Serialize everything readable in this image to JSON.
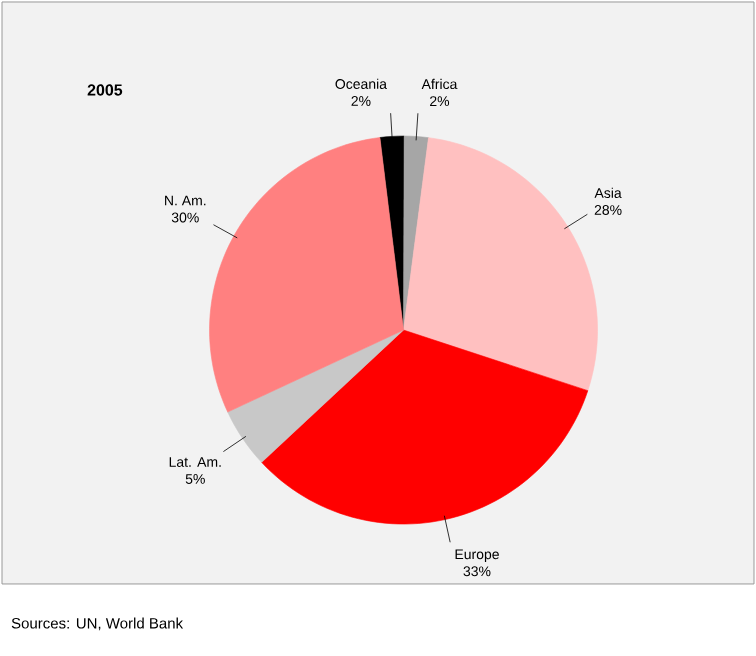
{
  "chart_data": {
    "type": "pie",
    "title": "2005",
    "categories": [
      "Oceania",
      "Africa",
      "Asia",
      "Europe",
      "Lat. Am.",
      "N. Am."
    ],
    "values": [
      2,
      2,
      28,
      33,
      5,
      30
    ],
    "value_labels": [
      "2%",
      "2%",
      "28%",
      "33%",
      "5%",
      "30%"
    ],
    "colors": [
      "#000000",
      "#a6a6a6",
      "#ffc0c0",
      "#ff0000",
      "#c8c8c8",
      "#ff8080"
    ],
    "annotations": [
      "Sources: UN, World Bank"
    ]
  }
}
